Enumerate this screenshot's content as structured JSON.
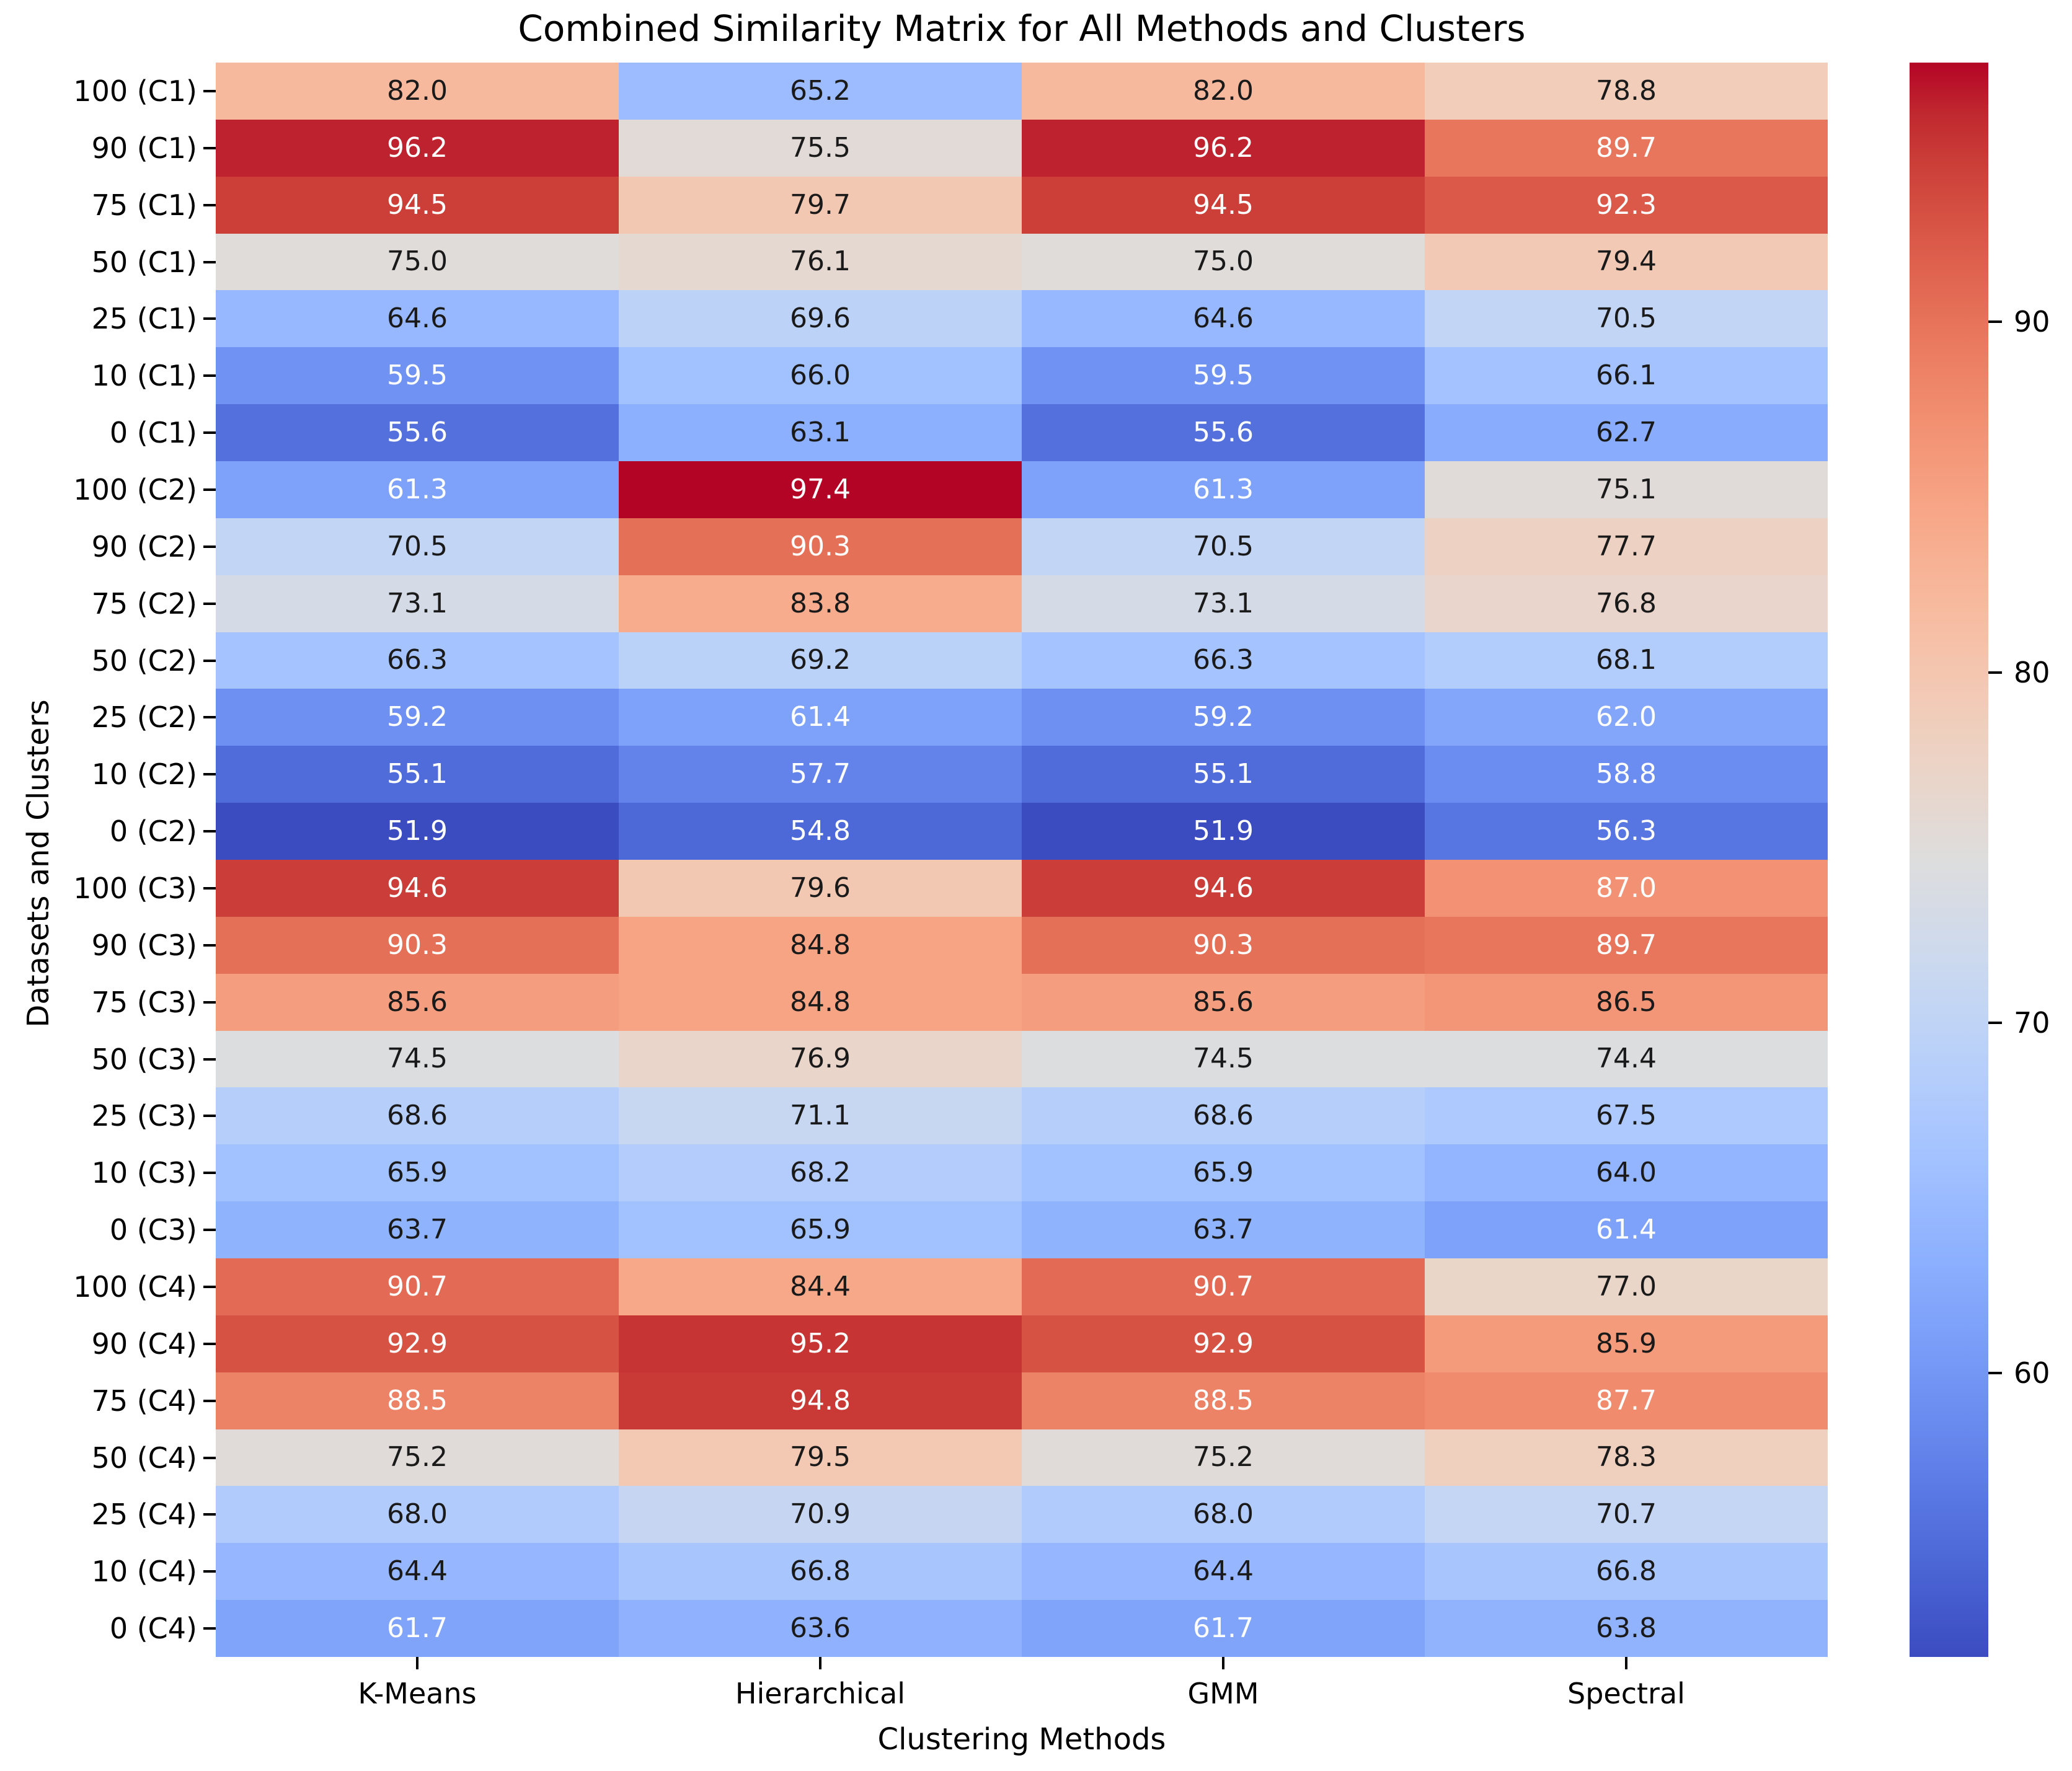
{
  "title": "Combined Similarity Matrix for All Methods and Clusters",
  "chart_data": {
    "type": "heatmap",
    "title": "Combined Similarity Matrix for All Methods and Clusters",
    "xlabel": "Clustering Methods",
    "ylabel": "Datasets and Clusters",
    "columns": [
      "K-Means",
      "Hierarchical",
      "GMM",
      "Spectral"
    ],
    "rows": [
      "100 (C1)",
      "90 (C1)",
      "75 (C1)",
      "50 (C1)",
      "25 (C1)",
      "10 (C1)",
      "0 (C1)",
      "100 (C2)",
      "90 (C2)",
      "75 (C2)",
      "50 (C2)",
      "25 (C2)",
      "10 (C2)",
      "0 (C2)",
      "100 (C3)",
      "90 (C3)",
      "75 (C3)",
      "50 (C3)",
      "25 (C3)",
      "10 (C3)",
      "0 (C3)",
      "100 (C4)",
      "90 (C4)",
      "75 (C4)",
      "50 (C4)",
      "25 (C4)",
      "10 (C4)",
      "0 (C4)"
    ],
    "values": [
      [
        82.0,
        65.2,
        82.0,
        78.8
      ],
      [
        96.2,
        75.5,
        96.2,
        89.7
      ],
      [
        94.5,
        79.7,
        94.5,
        92.3
      ],
      [
        75.0,
        76.1,
        75.0,
        79.4
      ],
      [
        64.6,
        69.6,
        64.6,
        70.5
      ],
      [
        59.5,
        66.0,
        59.5,
        66.1
      ],
      [
        55.6,
        63.1,
        55.6,
        62.7
      ],
      [
        61.3,
        97.4,
        61.3,
        75.1
      ],
      [
        70.5,
        90.3,
        70.5,
        77.7
      ],
      [
        73.1,
        83.8,
        73.1,
        76.8
      ],
      [
        66.3,
        69.2,
        66.3,
        68.1
      ],
      [
        59.2,
        61.4,
        59.2,
        62.0
      ],
      [
        55.1,
        57.7,
        55.1,
        58.8
      ],
      [
        51.9,
        54.8,
        51.9,
        56.3
      ],
      [
        94.6,
        79.6,
        94.6,
        87.0
      ],
      [
        90.3,
        84.8,
        90.3,
        89.7
      ],
      [
        85.6,
        84.8,
        85.6,
        86.5
      ],
      [
        74.5,
        76.9,
        74.5,
        74.4
      ],
      [
        68.6,
        71.1,
        68.6,
        67.5
      ],
      [
        65.9,
        68.2,
        65.9,
        64.0
      ],
      [
        63.7,
        65.9,
        63.7,
        61.4
      ],
      [
        90.7,
        84.4,
        90.7,
        77.0
      ],
      [
        92.9,
        95.2,
        92.9,
        85.9
      ],
      [
        88.5,
        94.8,
        88.5,
        87.7
      ],
      [
        75.2,
        79.5,
        75.2,
        78.3
      ],
      [
        68.0,
        70.9,
        68.0,
        70.7
      ],
      [
        64.4,
        66.8,
        64.4,
        66.8
      ],
      [
        61.7,
        63.6,
        61.7,
        63.8
      ]
    ],
    "annotation_decimals": 1,
    "vmin": 51.9,
    "vmax": 97.4,
    "colormap": "coolwarm",
    "colormap_stops": [
      "#3B4CC0",
      "#445ACC",
      "#4D68D7",
      "#5775E1",
      "#6282EA",
      "#6C8EF1",
      "#779AF7",
      "#82A5FB",
      "#8DB0FE",
      "#98B9FF",
      "#A3C2FF",
      "#AEC9FD",
      "#B8D0F9",
      "#C2D5F4",
      "#CCD9EE",
      "#D5DBE6",
      "#DDDDDD",
      "#E5D8D1",
      "#ECD3C5",
      "#F1CCB9",
      "#F5C4AD",
      "#F7BBA0",
      "#F7B194",
      "#F7A687",
      "#F49A7B",
      "#F18D6F",
      "#EC7F63",
      "#E57058",
      "#DE604D",
      "#D55042",
      "#CB3E38",
      "#C0282F",
      "#B40426"
    ],
    "annotation_color_dark": "#1a1a1a",
    "annotation_color_light": "#ffffff",
    "colorbar_ticks": [
      90,
      80,
      70,
      60
    ],
    "legend_position": "right",
    "grid": false
  }
}
